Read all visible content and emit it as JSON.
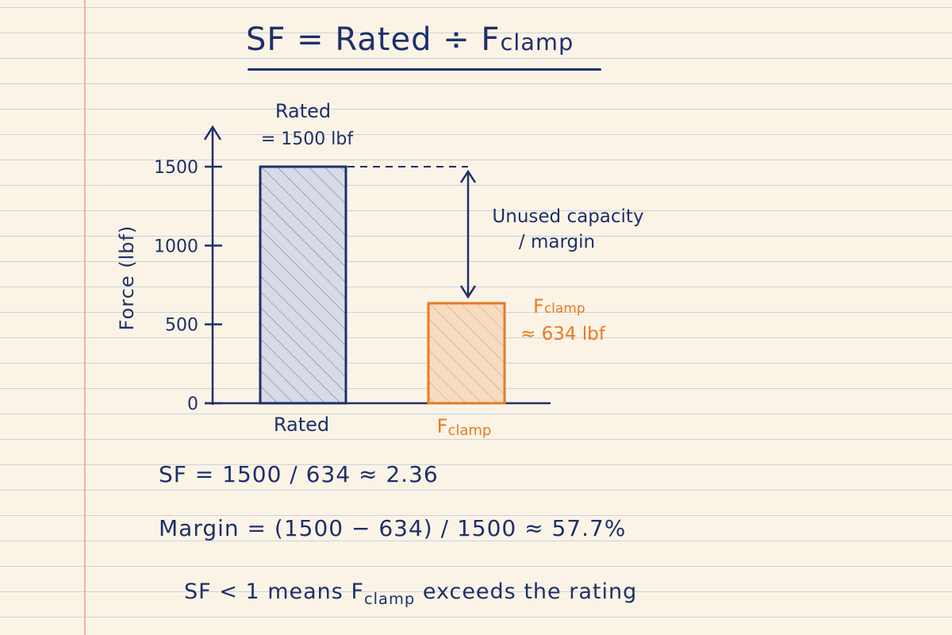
{
  "title": {
    "lhs": "SF",
    "eq": "=",
    "rated": "Rated",
    "div": "÷",
    "f": "F",
    "f_sub": "clamp"
  },
  "chart_data": {
    "type": "bar",
    "categories": [
      "Rated",
      "Fclamp"
    ],
    "category_labels": [
      {
        "main": "Rated",
        "sub": ""
      },
      {
        "main": "F",
        "sub": "clamp"
      }
    ],
    "values": [
      1500,
      634
    ],
    "ylabel": "Force (lbf)",
    "ylim": [
      0,
      1650
    ],
    "yticks": [
      0,
      500,
      1000,
      1500
    ],
    "bar_colors": [
      "#1f2f6b",
      "#ea7a22"
    ],
    "bar_fills": [
      "#d8dbe6",
      "#f6dcc3"
    ],
    "annotations": {
      "rated_line1": "Rated",
      "rated_line2": "= 1500 lbf",
      "fclamp_main": "F",
      "fclamp_sub": "clamp",
      "fclamp_value": "≈ 634 lbf",
      "margin_line1": "Unused capacity",
      "margin_line2": "/ margin"
    }
  },
  "formulas": {
    "sf": "SF  =  1500 / 634  ≈  2.36",
    "margin": "Margin  =  (1500 − 634) / 1500  ≈  57.7%"
  },
  "note": {
    "pre": "SF < 1 means F",
    "sub": "clamp",
    "post": " exceeds the rating"
  },
  "colors": {
    "navy": "#1f2f6b",
    "orange": "#ea7a22",
    "margin_line": "#f2b5a0",
    "rule_line": "#c9d2dc"
  }
}
